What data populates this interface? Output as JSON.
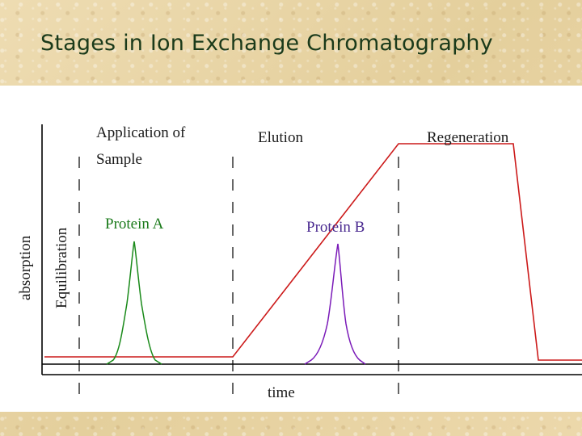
{
  "slide": {
    "title": "Stages in Ion Exchange Chromatography"
  },
  "diagram": {
    "y_axis_label": "absorption",
    "x_axis_label": "time",
    "stages": [
      {
        "name": "equilibration",
        "label_lines": [
          "Equilibration"
        ]
      },
      {
        "name": "application",
        "label_lines": [
          "Application of",
          "Sample"
        ]
      },
      {
        "name": "elution",
        "label_lines": [
          "Elution"
        ]
      },
      {
        "name": "regeneration",
        "label_lines": [
          "Regeneration"
        ]
      }
    ],
    "peaks": [
      {
        "name": "Protein A",
        "color": "#1a8a1a"
      },
      {
        "name": "Protein B",
        "color": "#7a1ab8"
      }
    ],
    "colors": {
      "gradient_line": "#cc1a1a",
      "axis": "#000000",
      "stage_label": "#1a1a1a",
      "protein_a_label": "#1a7a1a",
      "protein_b_label": "#4a2a90"
    }
  }
}
